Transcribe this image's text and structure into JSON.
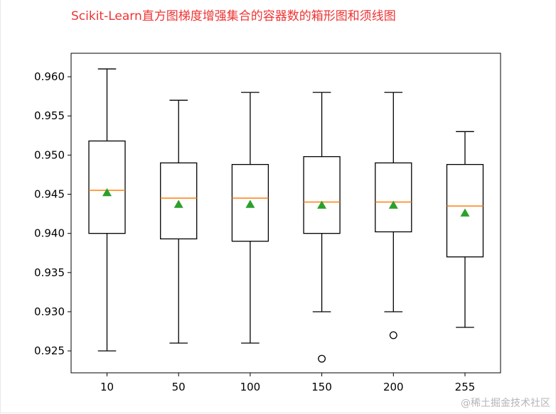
{
  "caption": "Scikit-Learn直方图梯度增强集合的容器数的箱形图和须线图",
  "watermark": "@稀土掘金技术社区",
  "colors": {
    "caption": "#ee3333",
    "box": "#000000",
    "median": "#ff7f0e",
    "mean": "#2ca02c"
  },
  "chart_data": {
    "type": "box",
    "title": "",
    "xlabel": "",
    "ylabel": "",
    "categories": [
      "10",
      "50",
      "100",
      "150",
      "200",
      "255"
    ],
    "ylim": [
      0.9222,
      0.963
    ],
    "yticks": [
      "0.960",
      "0.955",
      "0.950",
      "0.945",
      "0.940",
      "0.935",
      "0.930",
      "0.925"
    ],
    "grid": false,
    "boxes": [
      {
        "label": "10",
        "whisker_low": 0.925,
        "q1": 0.94,
        "median": 0.9455,
        "q3": 0.9518,
        "whisker_high": 0.961,
        "mean": 0.9452,
        "outliers": []
      },
      {
        "label": "50",
        "whisker_low": 0.926,
        "q1": 0.9393,
        "median": 0.9445,
        "q3": 0.949,
        "whisker_high": 0.957,
        "mean": 0.9437,
        "outliers": []
      },
      {
        "label": "100",
        "whisker_low": 0.926,
        "q1": 0.939,
        "median": 0.9445,
        "q3": 0.9488,
        "whisker_high": 0.958,
        "mean": 0.9437,
        "outliers": []
      },
      {
        "label": "150",
        "whisker_low": 0.93,
        "q1": 0.94,
        "median": 0.944,
        "q3": 0.9498,
        "whisker_high": 0.958,
        "mean": 0.9436,
        "outliers": [
          0.924
        ]
      },
      {
        "label": "200",
        "whisker_low": 0.93,
        "q1": 0.9402,
        "median": 0.944,
        "q3": 0.949,
        "whisker_high": 0.958,
        "mean": 0.9436,
        "outliers": [
          0.927
        ]
      },
      {
        "label": "255",
        "whisker_low": 0.928,
        "q1": 0.937,
        "median": 0.9435,
        "q3": 0.9488,
        "whisker_high": 0.953,
        "mean": 0.9426,
        "outliers": []
      }
    ]
  }
}
